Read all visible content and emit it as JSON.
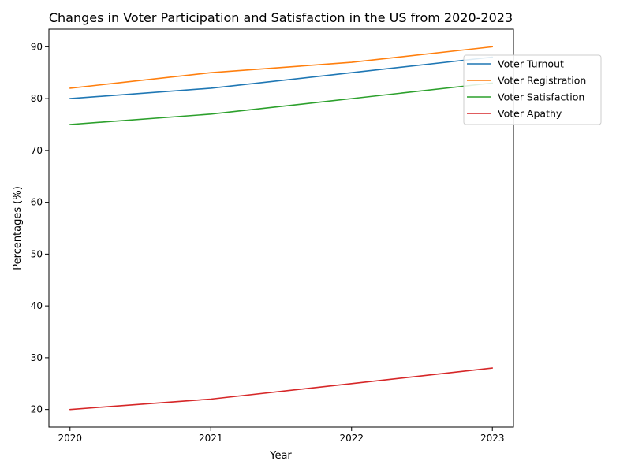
{
  "chart_data": {
    "type": "line",
    "title": "Changes in Voter Participation and Satisfaction in the US from 2020-2023",
    "xlabel": "Year",
    "ylabel": "Percentages (%)",
    "x": [
      "2020",
      "2021",
      "2022",
      "2023"
    ],
    "xlim": [
      2019.85,
      2023.15
    ],
    "ylim": [
      16.6,
      93.4
    ],
    "yticks": [
      20,
      30,
      40,
      50,
      60,
      70,
      80,
      90
    ],
    "grid": false,
    "legend_position": "upper-right",
    "series": [
      {
        "name": "Voter Turnout",
        "values": [
          80,
          82,
          85,
          88
        ],
        "color": "#1f77b4"
      },
      {
        "name": "Voter Registration",
        "values": [
          82,
          85,
          87,
          90
        ],
        "color": "#ff7f0e"
      },
      {
        "name": "Voter Satisfaction",
        "values": [
          75,
          77,
          80,
          83
        ],
        "color": "#2ca02c"
      },
      {
        "name": "Voter Apathy",
        "values": [
          20,
          22,
          25,
          28
        ],
        "color": "#d62728"
      }
    ]
  }
}
